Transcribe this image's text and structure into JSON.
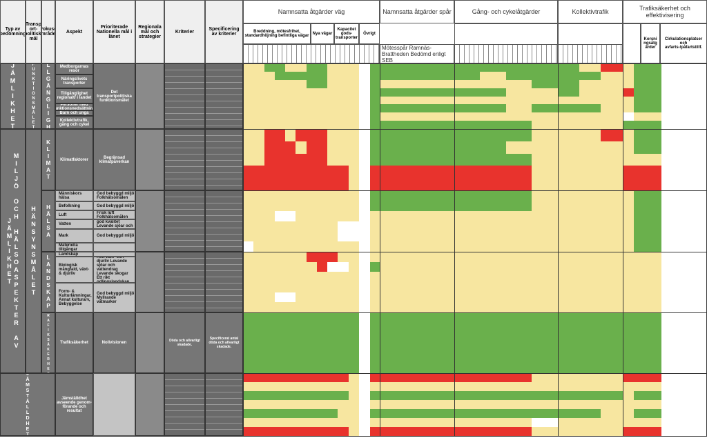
{
  "header": {
    "columns": [
      "Typ av bedömning",
      "Transp ort-politiskt mål",
      "Fokuso mråde",
      "Aspekt",
      "Prioriterade Nationella mål i länet",
      "Regionala mål och strategier",
      "Kriterier",
      "Specificering av kriterier"
    ],
    "groups": [
      {
        "title": "Namnsatta åtgärder väg",
        "subgroups": [
          "Breddning, mötesfrihet, standardhöjning befintliga vägar",
          "Nya vägar",
          "Kapacitet gods-transporter",
          "Övrigt"
        ]
      },
      {
        "title": "Namnsatta åtgärder spår",
        "note": "Mötesspår Ramnäs-Brattheden Bedömd enligt SEB"
      },
      {
        "title": "Gång- och cykelåtgärder"
      },
      {
        "title": "Kollektivtrafik"
      },
      {
        "title": "Trafiksäkerhet och effektivisering",
        "subgroups": [
          "Korsni ngsåtg ärder",
          "Cirkulationsplatser och avfarts-/påfartstillf."
        ]
      }
    ]
  },
  "rows": {
    "types": [
      "JÄMLIKHET",
      "MILJÖ OCH HÄLSOASPEKTER AV JÄMLIKHET",
      "JÄMSTÄLLDHET"
    ],
    "goals": [
      "FUNKTIONSMÅLET",
      "HÄNSYNSMÅLET"
    ],
    "focus": [
      "TILLGÄNGLIGHET",
      "KLIMAT",
      "HÄLSA",
      "LANDSKAP",
      "TRAFIKSÄKERHET"
    ],
    "aspects": [
      "Medborgarnas resor",
      "Näringslivets transporter",
      "Tillgänglighet regionalt/ i landet",
      "Personer med funktionsnedsättning",
      "Barn och unga",
      "Kollektivtrafik, gång och cykel",
      "Klimatfaktorer",
      "Människors hälsa",
      "Befolkning",
      "Luft",
      "Vatten",
      "Mark",
      "Materiella tillgångar",
      "Landskap",
      "Biologisk mångfald, växt- & djurliv",
      "Form- & Kulturlämningar, Annat kulturarv, Bebyggelse",
      "Trafiksäkerhet",
      "Jämställdhet avseende genom-förande och resultat"
    ],
    "priorities": [
      "Det transportpolitiska funktionsmålet",
      "Begränsad klimatpåverkan",
      "God bebyggd miljö Folkhälsomålen",
      "God bebyggd miljö",
      "Frisk luft Folkhälsomålen",
      "Grundvatten av god kvalitet Levande sjöar och vattendrag",
      "God bebyggd miljö",
      "Rikt växt- och djurliv Levande sjöar och vattendrag Levande skogar Ett rikt odlingslandskap",
      "God bebyggd miljö Myllrande våtmarker",
      "Nollvisionen"
    ],
    "criteria": [
      "Döda och allvarligt skadade."
    ],
    "specs": [
      "Specificerat antal döda och allvarligt skadade."
    ]
  }
}
